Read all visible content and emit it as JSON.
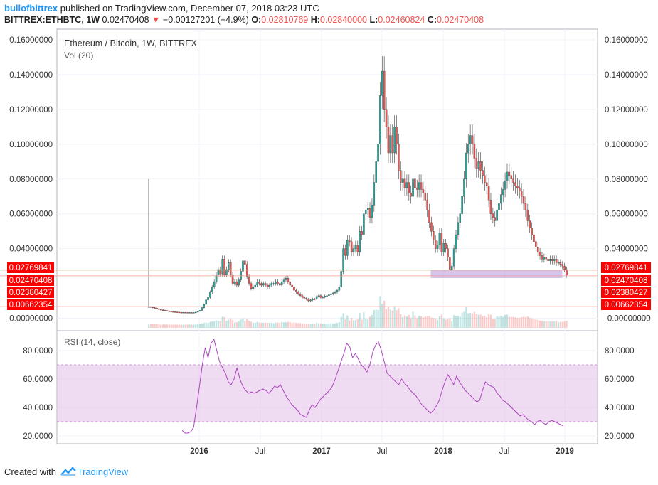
{
  "header": {
    "publisher": "bullofbittrex",
    "published_text": "published on TradingView.com, December 07, 2018 03:23 UTC",
    "symbol_interval": "BITTREX:ETHBTC, 1W",
    "last": "0.02470408",
    "change": "−0.00127201 (−4.9%)",
    "o_label": "O:",
    "o_value": "0.02810769",
    "h_label": "H:",
    "h_value": "0.02840000",
    "l_label": "L:",
    "l_value": "0.02460824",
    "c_label": "C:",
    "c_value": "0.02470408"
  },
  "footer": {
    "created_with": "Created with",
    "brand": "TradingView"
  },
  "colors": {
    "up": "#26a69a",
    "down": "#ef5350",
    "rsi": "#ab47bc",
    "band": "#e1bee7",
    "grid": "#f0f3fa",
    "hline": "#ef9a9a",
    "price_label_bg": "#ff0000"
  },
  "chart_data": [
    {
      "type": "candlestick",
      "title": "Ethereum / Bitcoin, 1W, BITTREX",
      "volume_label": "Vol (20)",
      "ylim": [
        -0.005,
        0.165
      ],
      "y_ticks": [
        "0.16000000",
        "0.14000000",
        "0.12000000",
        "0.10000000",
        "0.08000000",
        "0.06000000",
        "0.04000000",
        "-0.00000000"
      ],
      "x_ticks": [
        "2016",
        "Jul",
        "2017",
        "Jul",
        "2018",
        "Jul",
        "2019"
      ],
      "horizontal_lines": [
        0.02769841,
        0.02470408,
        0.02380427,
        0.00662354
      ],
      "price_labels": [
        "0.02769841",
        "0.02470408",
        "0.02380427",
        "0.00662354"
      ],
      "zone": [
        0.0233,
        0.0275
      ],
      "close_approx": [
        0.0066,
        0.0065,
        0.006,
        0.0058,
        0.0055,
        0.005,
        0.0048,
        0.0046,
        0.0044,
        0.0042,
        0.004,
        0.0038,
        0.0037,
        0.0036,
        0.0035,
        0.0034,
        0.0033,
        0.0034,
        0.0033,
        0.0032,
        0.0033,
        0.0031,
        0.0033,
        0.0035,
        0.004,
        0.0045,
        0.006,
        0.008,
        0.0105,
        0.012,
        0.015,
        0.018,
        0.021,
        0.025,
        0.028,
        0.0255,
        0.034,
        0.025,
        0.028,
        0.032,
        0.025,
        0.02,
        0.021,
        0.019,
        0.022,
        0.027,
        0.033,
        0.031,
        0.024,
        0.02,
        0.017,
        0.018,
        0.019,
        0.021,
        0.02,
        0.019,
        0.02,
        0.019,
        0.018,
        0.019,
        0.02,
        0.02,
        0.021,
        0.02,
        0.019,
        0.021,
        0.022,
        0.023,
        0.021,
        0.019,
        0.018,
        0.016,
        0.015,
        0.014,
        0.013,
        0.012,
        0.0115,
        0.011,
        0.01,
        0.0105,
        0.0111,
        0.011,
        0.0125,
        0.013,
        0.012,
        0.0122,
        0.0128,
        0.013,
        0.0135,
        0.014,
        0.0145,
        0.015,
        0.016,
        0.018,
        0.027,
        0.04,
        0.036,
        0.045,
        0.044,
        0.038,
        0.04,
        0.042,
        0.038,
        0.05,
        0.048,
        0.06,
        0.062,
        0.063,
        0.058,
        0.065,
        0.078,
        0.09,
        0.1,
        0.128,
        0.142,
        0.12,
        0.11,
        0.095,
        0.105,
        0.095,
        0.11,
        0.1,
        0.085,
        0.078,
        0.08,
        0.075,
        0.078,
        0.072,
        0.07,
        0.08,
        0.075,
        0.074,
        0.078,
        0.074,
        0.072,
        0.068,
        0.062,
        0.055,
        0.05,
        0.045,
        0.04,
        0.042,
        0.049,
        0.038,
        0.043,
        0.04,
        0.035,
        0.028,
        0.03,
        0.04,
        0.048,
        0.055,
        0.06,
        0.07,
        0.08,
        0.095,
        0.1,
        0.105,
        0.1,
        0.092,
        0.086,
        0.09,
        0.085,
        0.082,
        0.078,
        0.076,
        0.068,
        0.06,
        0.058,
        0.056,
        0.062,
        0.066,
        0.071,
        0.074,
        0.079,
        0.084,
        0.082,
        0.08,
        0.078,
        0.076,
        0.075,
        0.073,
        0.07,
        0.066,
        0.062,
        0.056,
        0.052,
        0.048,
        0.044,
        0.041,
        0.038,
        0.036,
        0.034,
        0.035,
        0.034,
        0.033,
        0.034,
        0.033,
        0.034,
        0.032,
        0.032,
        0.031,
        0.03,
        0.028,
        0.0247
      ]
    },
    {
      "type": "line",
      "title": "RSI (14, close)",
      "ylim": [
        18,
        94
      ],
      "y_ticks": [
        "80.0000",
        "60.0000",
        "40.0000",
        "20.0000"
      ],
      "band": [
        30,
        70
      ],
      "values": [
        24,
        22,
        22,
        23,
        26,
        40,
        55,
        70,
        82,
        75,
        85,
        88,
        80,
        72,
        68,
        64,
        58,
        56,
        60,
        68,
        60,
        55,
        52,
        50,
        51,
        50,
        51,
        52,
        53,
        52,
        50,
        52,
        55,
        54,
        56,
        52,
        48,
        45,
        42,
        40,
        38,
        35,
        34,
        33,
        38,
        42,
        40,
        43,
        46,
        48,
        50,
        52,
        55,
        60,
        66,
        72,
        78,
        85,
        83,
        75,
        78,
        74,
        70,
        68,
        65,
        70,
        79,
        84,
        86,
        80,
        72,
        64,
        62,
        60,
        58,
        56,
        60,
        57,
        55,
        52,
        50,
        48,
        45,
        42,
        40,
        38,
        36,
        38,
        41,
        45,
        52,
        58,
        63,
        60,
        56,
        62,
        58,
        55,
        52,
        50,
        48,
        46,
        44,
        45,
        52,
        58,
        56,
        55,
        54,
        50,
        48,
        45,
        44,
        42,
        40,
        38,
        36,
        34,
        35,
        33,
        31,
        30,
        28,
        30,
        31,
        29,
        28,
        30,
        31,
        30,
        29,
        28,
        27
      ]
    }
  ]
}
